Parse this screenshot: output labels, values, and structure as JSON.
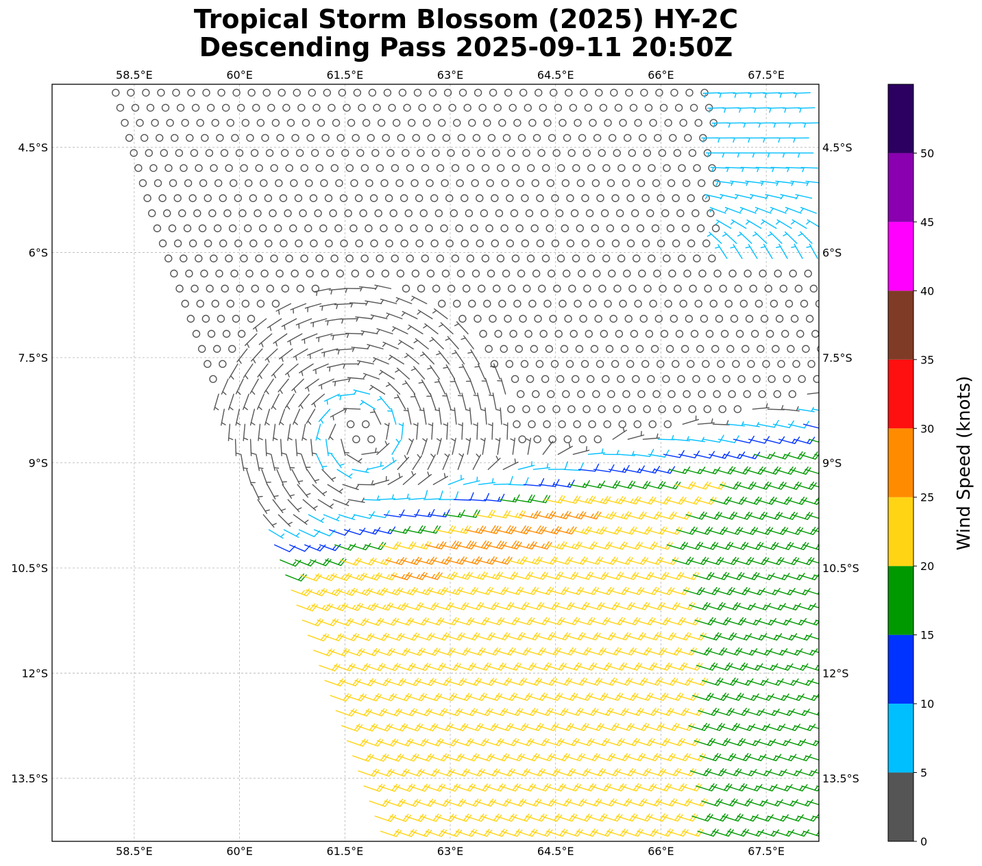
{
  "title": {
    "line1": "Tropical Storm Blossom (2025) HY-2C",
    "line2": "Descending Pass 2025-09-11 20:50Z"
  },
  "chart_data": {
    "type": "wind_barbs",
    "x_ticks": [
      "58.5°E",
      "60°E",
      "61.5°E",
      "63°E",
      "64.5°E",
      "66°E",
      "67.5°E"
    ],
    "x_tick_values": [
      58.5,
      60,
      61.5,
      63,
      64.5,
      66,
      67.5
    ],
    "y_ticks": [
      "4.5°S",
      "6°S",
      "7.5°S",
      "9°S",
      "10.5°S",
      "12°S",
      "13.5°S"
    ],
    "y_tick_values": [
      -4.5,
      -6,
      -7.5,
      -9,
      -10.5,
      -12,
      -13.5
    ],
    "xlim": [
      57.33,
      68.25
    ],
    "ylim": [
      -14.4,
      -3.6
    ],
    "grid": true,
    "storm_center": {
      "lon": 61.7,
      "lat": -8.6
    },
    "colorbar": {
      "label": "Wind Speed (knots)",
      "ticks": [
        "0",
        "5",
        "10",
        "15",
        "20",
        "25",
        "30",
        "35",
        "40",
        "45",
        "50"
      ],
      "range": [
        0,
        55
      ],
      "bins": [
        {
          "min": 0,
          "max": 5,
          "color": "#555555"
        },
        {
          "min": 5,
          "max": 10,
          "color": "#00bfff"
        },
        {
          "min": 10,
          "max": 15,
          "color": "#0033ff"
        },
        {
          "min": 15,
          "max": 20,
          "color": "#009900"
        },
        {
          "min": 20,
          "max": 25,
          "color": "#ffd414"
        },
        {
          "min": 25,
          "max": 30,
          "color": "#ff8c00"
        },
        {
          "min": 30,
          "max": 35,
          "color": "#ff1010"
        },
        {
          "min": 35,
          "max": 40,
          "color": "#7f3b26"
        },
        {
          "min": 40,
          "max": 45,
          "color": "#ff00ff"
        },
        {
          "min": 45,
          "max": 50,
          "color": "#8a00b0"
        },
        {
          "min": 50,
          "max": 55,
          "color": "#2b0060"
        }
      ]
    }
  }
}
